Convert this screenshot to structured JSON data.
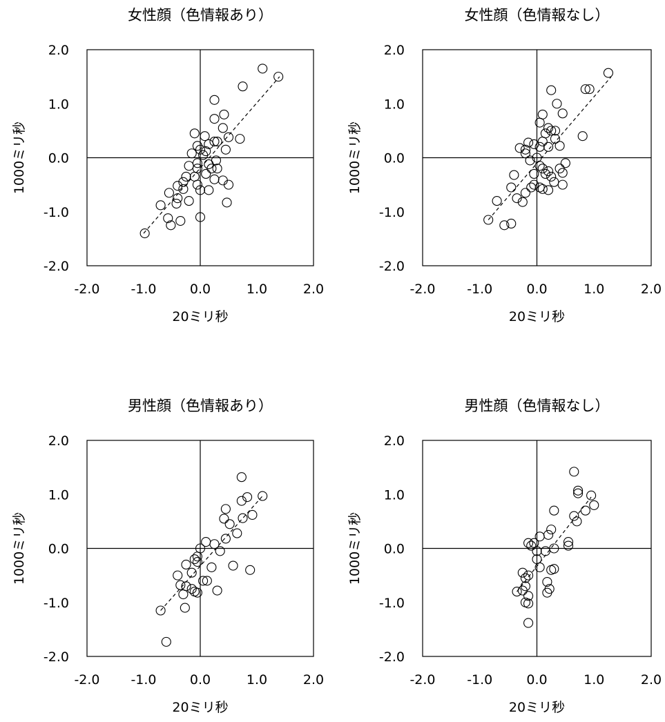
{
  "chart_data": [
    {
      "type": "scatter",
      "title": "女性顔（色情報あり）",
      "xlabel": "20ミリ秒",
      "ylabel": "1000ミリ秒",
      "xlim": [
        -2.0,
        2.0
      ],
      "ylim": [
        -2.0,
        2.0
      ],
      "xticks": [
        "-2.0",
        "-1.0",
        "0.0",
        "1.0",
        "2.0"
      ],
      "yticks": [
        "2.0",
        "1.0",
        "0.0",
        "-1.0",
        "-2.0"
      ],
      "grid": false,
      "trendline": {
        "style": "dashed",
        "x": [
          -1.0,
          1.4
        ],
        "y": [
          -1.4,
          1.5
        ]
      },
      "points": [
        [
          1.1,
          1.65
        ],
        [
          1.38,
          1.5
        ],
        [
          0.75,
          1.32
        ],
        [
          0.25,
          1.07
        ],
        [
          0.42,
          0.8
        ],
        [
          0.25,
          0.72
        ],
        [
          0.4,
          0.55
        ],
        [
          -0.1,
          0.45
        ],
        [
          0.08,
          0.4
        ],
        [
          0.5,
          0.38
        ],
        [
          0.7,
          0.35
        ],
        [
          0.25,
          0.3
        ],
        [
          0.3,
          0.3
        ],
        [
          0.15,
          0.25
        ],
        [
          -0.05,
          0.22
        ],
        [
          0.0,
          0.15
        ],
        [
          0.1,
          0.12
        ],
        [
          0.45,
          0.15
        ],
        [
          -0.15,
          0.08
        ],
        [
          0.05,
          0.05
        ],
        [
          0.28,
          -0.05
        ],
        [
          0.15,
          -0.12
        ],
        [
          0.2,
          -0.2
        ],
        [
          -0.05,
          -0.1
        ],
        [
          0.3,
          -0.2
        ],
        [
          -0.05,
          -0.2
        ],
        [
          -0.2,
          -0.15
        ],
        [
          0.1,
          -0.3
        ],
        [
          -0.1,
          -0.35
        ],
        [
          -0.25,
          -0.35
        ],
        [
          0.25,
          -0.4
        ],
        [
          0.4,
          -0.42
        ],
        [
          0.5,
          -0.5
        ],
        [
          -0.3,
          -0.45
        ],
        [
          -0.05,
          -0.5
        ],
        [
          -0.3,
          -0.58
        ],
        [
          -0.4,
          -0.52
        ],
        [
          0.0,
          -0.6
        ],
        [
          0.15,
          -0.6
        ],
        [
          -0.55,
          -0.65
        ],
        [
          -0.4,
          -0.75
        ],
        [
          -0.2,
          -0.8
        ],
        [
          0.47,
          -0.83
        ],
        [
          -0.42,
          -0.85
        ],
        [
          -0.7,
          -0.88
        ],
        [
          -0.57,
          -1.12
        ],
        [
          0.0,
          -1.1
        ],
        [
          -0.35,
          -1.17
        ],
        [
          -0.52,
          -1.25
        ],
        [
          -0.98,
          -1.4
        ]
      ]
    },
    {
      "type": "scatter",
      "title": "女性顔（色情報なし）",
      "xlabel": "20ミリ秒",
      "ylabel": "1000ミリ秒",
      "xlim": [
        -2.0,
        2.0
      ],
      "ylim": [
        -2.0,
        2.0
      ],
      "xticks": [
        "-2.0",
        "-1.0",
        "0.0",
        "1.0",
        "2.0"
      ],
      "yticks": [
        "2.0",
        "1.0",
        "0.0",
        "-1.0",
        "-2.0"
      ],
      "grid": false,
      "trendline": {
        "style": "dashed",
        "x": [
          -0.85,
          1.3
        ],
        "y": [
          -1.15,
          1.5
        ]
      },
      "points": [
        [
          1.25,
          1.57
        ],
        [
          0.85,
          1.27
        ],
        [
          0.92,
          1.27
        ],
        [
          0.25,
          1.25
        ],
        [
          0.35,
          1.0
        ],
        [
          0.45,
          0.82
        ],
        [
          0.1,
          0.8
        ],
        [
          0.05,
          0.65
        ],
        [
          0.2,
          0.55
        ],
        [
          0.25,
          0.5
        ],
        [
          0.32,
          0.5
        ],
        [
          0.15,
          0.45
        ],
        [
          0.32,
          0.35
        ],
        [
          0.8,
          0.4
        ],
        [
          0.1,
          0.3
        ],
        [
          0.05,
          0.2
        ],
        [
          0.2,
          0.2
        ],
        [
          0.4,
          0.22
        ],
        [
          -0.05,
          0.25
        ],
        [
          -0.15,
          0.28
        ],
        [
          -0.2,
          0.15
        ],
        [
          -0.2,
          0.08
        ],
        [
          -0.3,
          0.18
        ],
        [
          0.0,
          0.0
        ],
        [
          -0.12,
          -0.05
        ],
        [
          0.5,
          -0.1
        ],
        [
          0.05,
          -0.15
        ],
        [
          0.1,
          -0.2
        ],
        [
          0.4,
          -0.2
        ],
        [
          0.2,
          -0.25
        ],
        [
          0.45,
          -0.28
        ],
        [
          0.15,
          -0.3
        ],
        [
          -0.05,
          -0.3
        ],
        [
          0.25,
          -0.35
        ],
        [
          -0.4,
          -0.32
        ],
        [
          0.3,
          -0.45
        ],
        [
          0.45,
          -0.5
        ],
        [
          -0.05,
          -0.5
        ],
        [
          -0.1,
          -0.55
        ],
        [
          0.05,
          -0.55
        ],
        [
          -0.45,
          -0.55
        ],
        [
          0.1,
          -0.58
        ],
        [
          0.2,
          -0.6
        ],
        [
          -0.2,
          -0.65
        ],
        [
          -0.35,
          -0.75
        ],
        [
          -0.25,
          -0.82
        ],
        [
          -0.7,
          -0.8
        ],
        [
          -0.85,
          -1.15
        ],
        [
          -0.45,
          -1.22
        ],
        [
          -0.57,
          -1.25
        ]
      ]
    },
    {
      "type": "scatter",
      "title": "男性顔（色情報あり）",
      "xlabel": "20ミリ秒",
      "ylabel": "1000ミリ秒",
      "xlim": [
        -2.0,
        2.0
      ],
      "ylim": [
        -2.0,
        2.0
      ],
      "xticks": [
        "-2.0",
        "-1.0",
        "0.0",
        "1.0",
        "2.0"
      ],
      "yticks": [
        "2.0",
        "1.0",
        "0.0",
        "-1.0",
        "-2.0"
      ],
      "grid": false,
      "trendline": {
        "style": "dashed",
        "x": [
          -0.7,
          1.1
        ],
        "y": [
          -1.15,
          0.97
        ]
      },
      "points": [
        [
          0.73,
          1.32
        ],
        [
          1.1,
          0.97
        ],
        [
          0.83,
          0.95
        ],
        [
          0.73,
          0.88
        ],
        [
          0.45,
          0.73
        ],
        [
          0.92,
          0.62
        ],
        [
          0.75,
          0.56
        ],
        [
          0.42,
          0.55
        ],
        [
          0.52,
          0.45
        ],
        [
          0.65,
          0.28
        ],
        [
          0.45,
          0.18
        ],
        [
          0.1,
          0.12
        ],
        [
          0.25,
          0.08
        ],
        [
          0.35,
          -0.05
        ],
        [
          0.0,
          0.0
        ],
        [
          -0.05,
          -0.15
        ],
        [
          -0.1,
          -0.2
        ],
        [
          -0.05,
          -0.25
        ],
        [
          -0.25,
          -0.3
        ],
        [
          0.2,
          -0.35
        ],
        [
          0.58,
          -0.32
        ],
        [
          0.88,
          -0.4
        ],
        [
          -0.15,
          -0.45
        ],
        [
          -0.4,
          -0.5
        ],
        [
          0.05,
          -0.6
        ],
        [
          0.12,
          -0.6
        ],
        [
          -0.35,
          -0.68
        ],
        [
          -0.25,
          -0.7
        ],
        [
          -0.15,
          -0.75
        ],
        [
          -0.1,
          -0.8
        ],
        [
          -0.05,
          -0.82
        ],
        [
          0.3,
          -0.78
        ],
        [
          -0.3,
          -0.85
        ],
        [
          -0.27,
          -1.1
        ],
        [
          -0.7,
          -1.15
        ],
        [
          -0.6,
          -1.73
        ]
      ]
    },
    {
      "type": "scatter",
      "title": "男性顔（色情報なし）",
      "xlabel": "20ミリ秒",
      "ylabel": "1000ミリ秒",
      "xlim": [
        -2.0,
        2.0
      ],
      "ylim": [
        -2.0,
        2.0
      ],
      "xticks": [
        "-2.0",
        "-1.0",
        "0.0",
        "1.0",
        "2.0"
      ],
      "yticks": [
        "2.0",
        "1.0",
        "0.0",
        "-1.0",
        "-2.0"
      ],
      "grid": false,
      "trendline": {
        "style": "dashed",
        "x": [
          -0.35,
          0.95
        ],
        "y": [
          -0.8,
          0.95
        ]
      },
      "points": [
        [
          0.65,
          1.42
        ],
        [
          0.72,
          1.07
        ],
        [
          0.72,
          1.02
        ],
        [
          0.95,
          0.98
        ],
        [
          1.0,
          0.8
        ],
        [
          0.85,
          0.7
        ],
        [
          0.3,
          0.7
        ],
        [
          0.65,
          0.6
        ],
        [
          0.7,
          0.5
        ],
        [
          0.25,
          0.35
        ],
        [
          0.2,
          0.25
        ],
        [
          0.05,
          0.22
        ],
        [
          0.55,
          0.12
        ],
        [
          -0.15,
          0.1
        ],
        [
          -0.05,
          0.1
        ],
        [
          -0.1,
          0.05
        ],
        [
          0.55,
          0.05
        ],
        [
          0.3,
          0.0
        ],
        [
          0.15,
          -0.05
        ],
        [
          0.0,
          -0.05
        ],
        [
          0.0,
          -0.2
        ],
        [
          0.05,
          -0.35
        ],
        [
          0.3,
          -0.38
        ],
        [
          0.25,
          -0.4
        ],
        [
          -0.25,
          -0.45
        ],
        [
          -0.15,
          -0.5
        ],
        [
          -0.2,
          -0.55
        ],
        [
          0.18,
          -0.62
        ],
        [
          -0.2,
          -0.7
        ],
        [
          0.22,
          -0.75
        ],
        [
          -0.35,
          -0.8
        ],
        [
          -0.25,
          -0.78
        ],
        [
          0.18,
          -0.82
        ],
        [
          -0.15,
          -0.88
        ],
        [
          -0.2,
          -1.0
        ],
        [
          -0.15,
          -1.02
        ],
        [
          -0.15,
          -1.38
        ]
      ]
    }
  ]
}
